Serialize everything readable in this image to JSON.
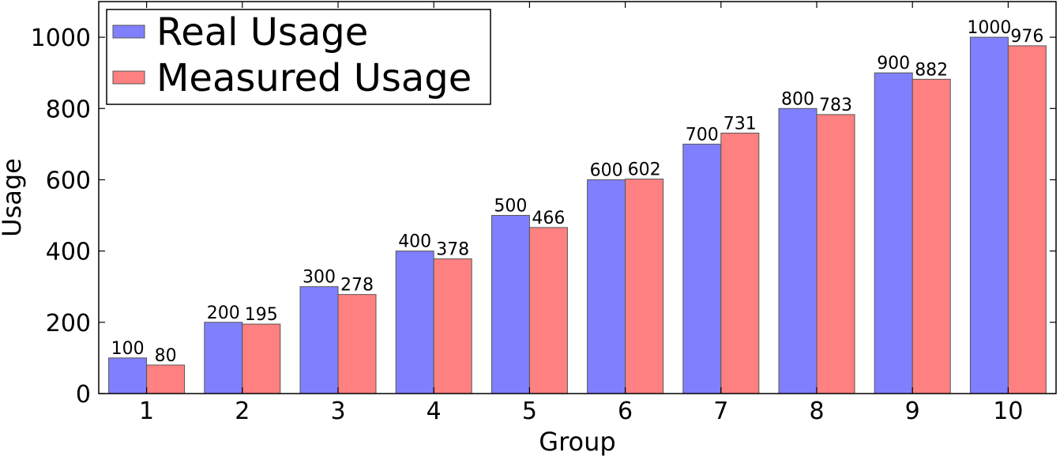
{
  "chart_data": {
    "type": "bar",
    "categories": [
      "1",
      "2",
      "3",
      "4",
      "5",
      "6",
      "7",
      "8",
      "9",
      "10"
    ],
    "series": [
      {
        "name": "Real Usage",
        "color": "#8080ff",
        "values": [
          100,
          200,
          300,
          400,
          500,
          600,
          700,
          800,
          900,
          1000
        ]
      },
      {
        "name": "Measured Usage",
        "color": "#ff8080",
        "values": [
          80,
          195,
          278,
          378,
          466,
          602,
          731,
          783,
          882,
          976
        ]
      }
    ],
    "xlabel": "Group",
    "ylabel": "Usage",
    "ylim": [
      0,
      1100
    ],
    "yticks": [
      0,
      200,
      400,
      600,
      800,
      1000
    ],
    "legend_position": "top-left",
    "grid": false
  }
}
